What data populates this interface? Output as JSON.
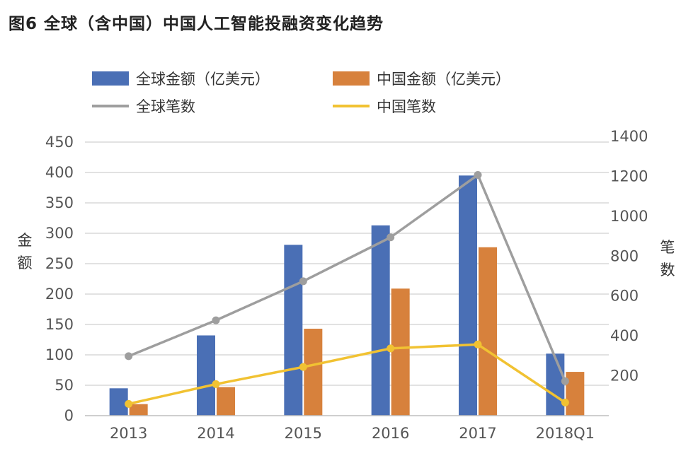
{
  "title": "图6 全球（含中国）中国人工智能投融资变化趋势",
  "chart_data": {
    "type": "bar",
    "categories": [
      "2013",
      "2014",
      "2015",
      "2016",
      "2017",
      "2018Q1"
    ],
    "series": [
      {
        "name": "全球金额（亿美元）",
        "kind": "bar",
        "axis": "left",
        "color": "#4a6fb5",
        "values": [
          45,
          132,
          281,
          313,
          395,
          102
        ]
      },
      {
        "name": "中国金额（亿美元）",
        "kind": "bar",
        "axis": "left",
        "color": "#d7813c",
        "values": [
          19,
          47,
          143,
          209,
          277,
          72
        ]
      },
      {
        "name": "全球笔数",
        "kind": "line",
        "axis": "right",
        "color": "#9e9e9e",
        "values": [
          298,
          478,
          674,
          894,
          1207,
          173
        ]
      },
      {
        "name": "中国笔数",
        "kind": "line",
        "axis": "right",
        "color": "#f1c232",
        "values": [
          59,
          158,
          244,
          337,
          357,
          66
        ]
      }
    ],
    "y_left": {
      "label": "金额",
      "min": 0,
      "max": 450,
      "ticks": [
        0,
        50,
        100,
        150,
        200,
        250,
        300,
        350,
        400,
        450
      ]
    },
    "y_right": {
      "label": "笔数",
      "min": 0,
      "max": 1400,
      "ticks": [
        200,
        400,
        600,
        800,
        1000,
        1200,
        1400
      ]
    },
    "grid": true,
    "legend_position": "top"
  },
  "colors": {
    "grid": "#d9d9d9",
    "axis": "#bfbfbf"
  }
}
